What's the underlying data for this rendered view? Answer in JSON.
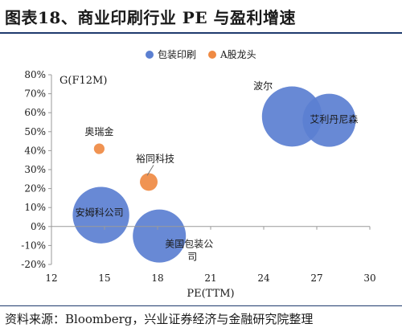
{
  "header": {
    "title": "图表18、商业印刷行业 PE 与盈利增速"
  },
  "footer": {
    "source": "资料来源：Bloomberg，兴业证券经济与金融研究院整理"
  },
  "colors": {
    "blue": "#5b7fd1",
    "orange": "#ef8a43",
    "axis": "#9a9a9a",
    "rule": "#1f3b6e"
  },
  "chart_data": {
    "type": "scatter",
    "xlabel": "PE(TTM)",
    "ylabel": "G(F12M)",
    "xlim": [
      12,
      30
    ],
    "ylim": [
      -20,
      80
    ],
    "x_ticks": [
      12,
      15,
      18,
      21,
      24,
      27,
      30
    ],
    "y_ticks": [
      -20,
      -10,
      0,
      10,
      20,
      30,
      40,
      50,
      60,
      70,
      80
    ],
    "y_tick_suffix": "%",
    "grid": false,
    "legend_position": "top-center",
    "series": [
      {
        "name": "包装印刷",
        "color": "#5b7fd1",
        "points": [
          {
            "label": "安姆科公司",
            "x": 14.8,
            "y": 6,
            "size": 3.2
          },
          {
            "label": "美国包装公司",
            "x": 18.1,
            "y": -5,
            "size": 3.0
          },
          {
            "label": "波尔",
            "x": 25.6,
            "y": 58,
            "size": 3.4
          },
          {
            "label": "艾利丹尼森",
            "x": 27.7,
            "y": 56,
            "size": 3.0
          }
        ]
      },
      {
        "name": "A股龙头",
        "color": "#ef8a43",
        "points": [
          {
            "label": "奥瑞金",
            "x": 14.7,
            "y": 41,
            "size": 0.6
          },
          {
            "label": "裕同科技",
            "x": 17.5,
            "y": 23.5,
            "size": 1.0
          }
        ]
      }
    ]
  }
}
